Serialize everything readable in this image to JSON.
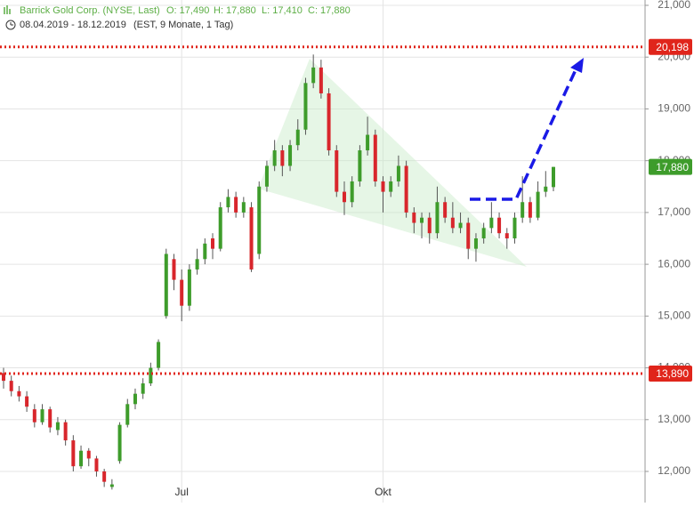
{
  "chart_data": {
    "type": "candlestick",
    "header": {
      "title": "Barrick Gold Corp. (NYSE, Last)",
      "open": "O: 17,490",
      "high": "H: 17,880",
      "low": "L: 17,410",
      "close": "C: 17,880",
      "period": "08.04.2019 - 18.12.2019",
      "info": "(EST, 9 Monate, 1 Tag)"
    },
    "categories": [
      null,
      null,
      null,
      null,
      null,
      null,
      null,
      null,
      null,
      null,
      null,
      null,
      null,
      null,
      null,
      null,
      null,
      null,
      null,
      null,
      null,
      null,
      null,
      "Jul",
      null,
      null,
      null,
      null,
      null,
      null,
      null,
      null,
      null,
      null,
      null,
      null,
      null,
      null,
      null,
      null,
      null,
      null,
      null,
      null,
      null,
      null,
      null,
      null,
      null,
      "Okt",
      null,
      null,
      null,
      null,
      null,
      null,
      null,
      null,
      null,
      null,
      null,
      null,
      null,
      null,
      null,
      null,
      null,
      null,
      null,
      null,
      null,
      null
    ],
    "open": [
      13900,
      13750,
      13550,
      13450,
      13200,
      12950,
      13200,
      12800,
      12950,
      12600,
      12100,
      12400,
      12250,
      12000,
      11700,
      12200,
      12900,
      13300,
      13500,
      13700,
      14000,
      15000,
      16100,
      15700,
      15200,
      15900,
      16100,
      16500,
      16300,
      17100,
      17300,
      17000,
      17100,
      16200,
      17500,
      17900,
      18200,
      17900,
      18300,
      18600,
      19500,
      19800,
      19300,
      18200,
      17400,
      17200,
      17600,
      18200,
      18500,
      17600,
      17400,
      17600,
      17900,
      17000,
      16800,
      16900,
      16600,
      17200,
      16900,
      16700,
      16800,
      16300,
      16500,
      16700,
      16900,
      16600,
      16500,
      16900,
      17200,
      16900,
      17400,
      17490
    ],
    "high": [
      14000,
      13850,
      13650,
      13550,
      13300,
      13300,
      13250,
      13050,
      13000,
      12700,
      12500,
      12450,
      12300,
      12050,
      11850,
      12950,
      13400,
      13600,
      13800,
      14100,
      14550,
      16300,
      16200,
      15900,
      16000,
      16300,
      16500,
      16600,
      17200,
      17450,
      17400,
      17300,
      17200,
      17600,
      18000,
      18400,
      18300,
      18400,
      18800,
      19600,
      20050,
      19950,
      19400,
      18300,
      17600,
      17700,
      18300,
      18850,
      18600,
      17700,
      17700,
      18100,
      18000,
      17100,
      17000,
      17000,
      17500,
      17300,
      17200,
      17000,
      16900,
      16600,
      16800,
      17200,
      17000,
      16700,
      17000,
      17700,
      17300,
      17600,
      17800,
      17880
    ],
    "low": [
      13600,
      13450,
      13350,
      13150,
      12850,
      12900,
      12750,
      12700,
      12500,
      12000,
      12050,
      12100,
      11900,
      11700,
      11650,
      12150,
      12850,
      13200,
      13400,
      13650,
      13950,
      14950,
      15500,
      14900,
      15100,
      15800,
      16000,
      16100,
      16250,
      17000,
      16900,
      16900,
      15850,
      16100,
      17400,
      17800,
      17700,
      17800,
      18200,
      18500,
      19400,
      19200,
      18100,
      17300,
      16950,
      17100,
      17500,
      18100,
      17500,
      17000,
      17300,
      17500,
      16900,
      16600,
      16500,
      16400,
      16500,
      16800,
      16600,
      16600,
      16100,
      16050,
      16400,
      16600,
      16500,
      16300,
      16400,
      16800,
      16800,
      16850,
      17300,
      17410
    ],
    "close": [
      13750,
      13550,
      13450,
      13250,
      12950,
      13200,
      12850,
      12950,
      12600,
      12100,
      12400,
      12250,
      12000,
      11800,
      11750,
      12900,
      13300,
      13500,
      13700,
      14000,
      14500,
      16200,
      15700,
      15200,
      15900,
      16100,
      16400,
      16300,
      17100,
      17300,
      17000,
      17200,
      15900,
      17500,
      17900,
      18200,
      17900,
      18300,
      18600,
      19500,
      19800,
      19300,
      18200,
      17400,
      17200,
      17600,
      18200,
      18500,
      17600,
      17400,
      17600,
      17900,
      17000,
      16800,
      16900,
      16600,
      17200,
      16900,
      16700,
      16800,
      16300,
      16500,
      16700,
      16900,
      16600,
      16500,
      16900,
      17200,
      16900,
      17400,
      17500,
      17880
    ],
    "up_color": "#3e9c2b",
    "down_color": "#d8262c",
    "ylim": [
      11399,
      21103
    ],
    "yticks": [
      {
        "value": 12000,
        "label": "12,000"
      },
      {
        "value": 13000,
        "label": "13,000"
      },
      {
        "value": 14000,
        "label": "14,000"
      },
      {
        "value": 15000,
        "label": "15,000"
      },
      {
        "value": 16000,
        "label": "16,000"
      },
      {
        "value": 17000,
        "label": "17,000"
      },
      {
        "value": 18000,
        "label": "18,000"
      },
      {
        "value": 19000,
        "label": "19,000"
      },
      {
        "value": 20000,
        "label": "20,000"
      },
      {
        "value": 21000,
        "label": "21,000"
      }
    ],
    "grid": true,
    "reference_lines": [
      {
        "value": 20198,
        "label": "20,198",
        "color": "#e0251b"
      },
      {
        "value": 13890,
        "label": "13,890",
        "color": "#e0251b"
      }
    ],
    "last_price": {
      "value": 17880,
      "label": "17,880",
      "color": "#3e9c2b"
    }
  }
}
